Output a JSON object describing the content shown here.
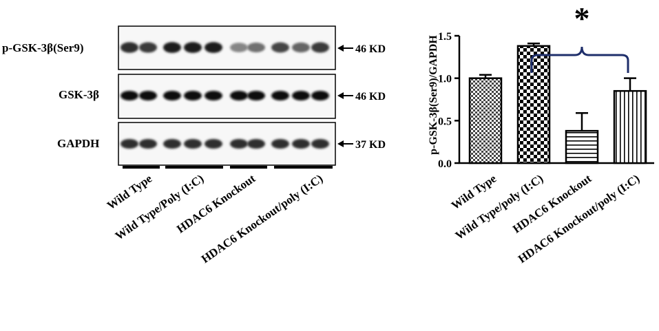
{
  "blot": {
    "row_labels": [
      "p-GSK-3β(Ser9)",
      "GSK-3β",
      "GAPDH"
    ],
    "size_labels": [
      "46 KD",
      "46 KD",
      "37 KD"
    ],
    "group_labels": [
      "Wild Type",
      "Wild Type/Poly (I:C)",
      "HDAC6 Knockout",
      "HDAC6 Knockout/poly (I:C)"
    ],
    "lanes_per_group": [
      2,
      3,
      2,
      3
    ],
    "band_intensity": [
      [
        0.85,
        0.8,
        0.95,
        0.95,
        0.95,
        0.45,
        0.55,
        0.75,
        0.6,
        0.8
      ],
      [
        1,
        1,
        1,
        1,
        1,
        1,
        1,
        1,
        1,
        1
      ],
      [
        0.85,
        0.85,
        0.85,
        0.85,
        0.85,
        0.85,
        0.85,
        0.85,
        0.85,
        0.85
      ]
    ]
  },
  "chart_data": {
    "type": "bar",
    "categories": [
      "Wild Type",
      "Wild Type/poly (I:C)",
      "HDAC6 Knockout",
      "HDAC6 Knockout/poly (I:C)"
    ],
    "values": [
      1.0,
      1.38,
      0.38,
      0.85
    ],
    "errors": [
      0.04,
      0.03,
      0.21,
      0.15
    ],
    "patterns": [
      "small-check",
      "large-check",
      "horizontal",
      "vertical"
    ],
    "ylabel": "p-GSK-3β(Ser9)/GAPDH",
    "ylim": [
      0,
      1.5
    ],
    "yticks": [
      0.0,
      0.5,
      1.0,
      1.5
    ],
    "ytick_labels": [
      "0.0",
      "0.5",
      "1.0",
      "1.5"
    ],
    "significance": {
      "symbol": "*",
      "between": [
        1,
        3
      ]
    },
    "bracket_color": "#1f2f6b"
  }
}
